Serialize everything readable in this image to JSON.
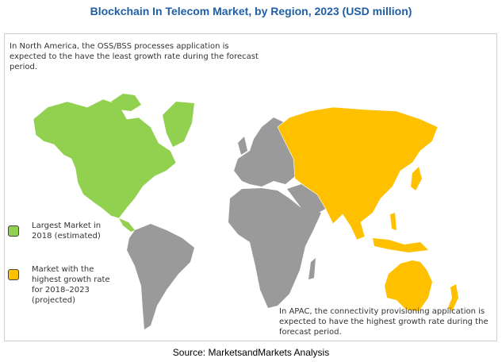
{
  "header": {
    "title": "Blockchain In Telecom Market, by Region, 2023 (USD million)"
  },
  "top_note": {
    "lines": [
      "In North America, the OSS/BSS processes application is",
      "expected to the have the least growth rate during the forecast",
      "period."
    ]
  },
  "legend": {
    "items": [
      {
        "lines": [
          "Largest Market in",
          "2018 (estimated)"
        ],
        "color": "#92d050"
      },
      {
        "lines": [
          "Market with the",
          "highest growth rate",
          "for 2018–2023",
          "(projected)"
        ],
        "color": "#ffc000"
      }
    ]
  },
  "bottom_note": {
    "lines": [
      "In APAC, the connectivity provisioning application is",
      "expected to have the highest growth rate during the",
      "forecast period."
    ]
  },
  "footer": {
    "source": "Source: MarketsandMarkets Analysis"
  }
}
